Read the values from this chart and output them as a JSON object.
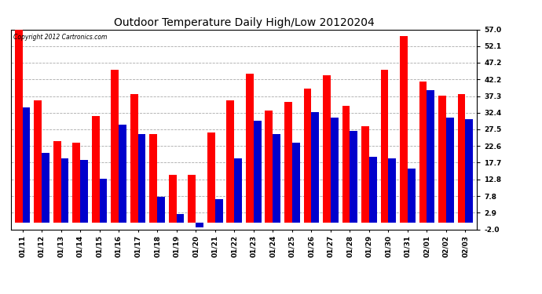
{
  "title": "Outdoor Temperature Daily High/Low 20120204",
  "copyright": "Copyright 2012 Cartronics.com",
  "dates": [
    "01/11",
    "01/12",
    "01/13",
    "01/14",
    "01/15",
    "01/16",
    "01/17",
    "01/18",
    "01/19",
    "01/20",
    "01/21",
    "01/22",
    "01/23",
    "01/24",
    "01/25",
    "01/26",
    "01/27",
    "01/28",
    "01/29",
    "01/30",
    "01/31",
    "02/01",
    "02/02",
    "02/03"
  ],
  "highs": [
    57.0,
    36.0,
    24.0,
    23.5,
    31.5,
    45.0,
    38.0,
    26.0,
    14.0,
    14.0,
    26.5,
    36.0,
    44.0,
    33.0,
    35.5,
    39.5,
    43.5,
    34.5,
    28.5,
    45.0,
    55.0,
    41.5,
    37.5,
    38.0
  ],
  "lows": [
    34.0,
    20.5,
    19.0,
    18.5,
    13.0,
    29.0,
    26.0,
    7.5,
    2.5,
    -1.5,
    7.0,
    19.0,
    30.0,
    26.0,
    23.5,
    32.5,
    31.0,
    27.0,
    19.5,
    19.0,
    16.0,
    39.0,
    31.0,
    30.5
  ],
  "high_color": "#FF0000",
  "low_color": "#0000CC",
  "ylim": [
    -2.0,
    57.0
  ],
  "yticks": [
    57.0,
    52.1,
    47.2,
    42.2,
    37.3,
    32.4,
    27.5,
    22.6,
    17.7,
    12.8,
    7.8,
    2.9,
    -2.0
  ],
  "bg_color": "#FFFFFF",
  "grid_color": "#AAAAAA",
  "bar_width": 0.4,
  "title_fontsize": 10,
  "tick_fontsize": 6.5
}
